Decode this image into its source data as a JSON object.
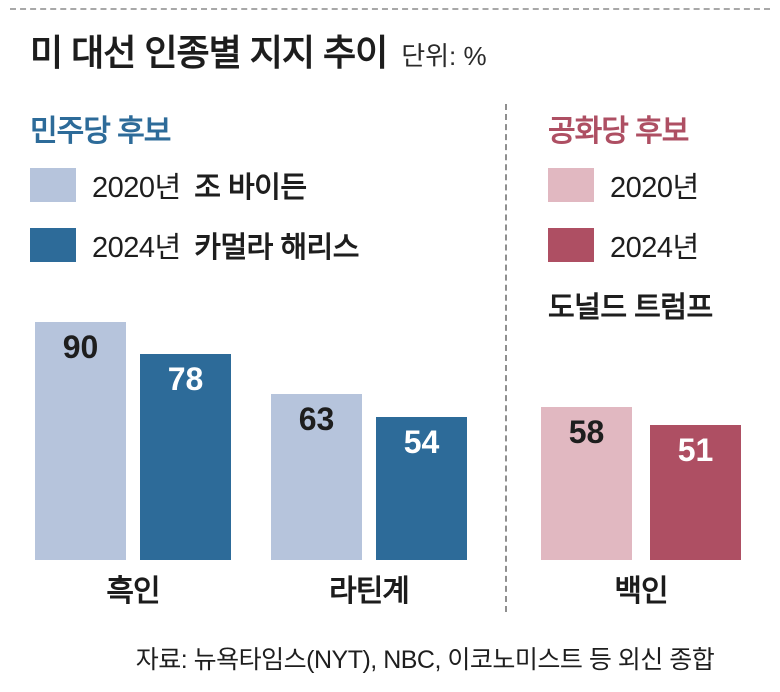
{
  "header": {
    "title": "미 대선 인종별 지지 추이",
    "unit_label": "단위: %"
  },
  "colors": {
    "dem_2020": "#b6c4dc",
    "dem_2024": "#2d6b99",
    "rep_2020": "#e1b8c1",
    "rep_2024": "#ae4f63",
    "dem_section_label": "#2d6b99",
    "rep_section_label": "#ae4f63",
    "label_on_light": "#1e1e1e",
    "label_on_dark": "#ffffff"
  },
  "democrat": {
    "section_label": "민주당 후보",
    "legend": [
      {
        "year": "2020년",
        "name": "조 바이든"
      },
      {
        "year": "2024년",
        "name": "카멀라 해리스"
      }
    ]
  },
  "republican": {
    "section_label": "공화당 후보",
    "legend": [
      {
        "year": "2020년"
      },
      {
        "year": "2024년"
      }
    ],
    "candidate_name": "도널드 트럼프"
  },
  "chart_data": {
    "type": "bar",
    "title": "미 대선 인종별 지지 추이",
    "unit": "%",
    "ylim": [
      0,
      100
    ],
    "legend_position": "top",
    "series_labels": [
      "2020년",
      "2024년"
    ],
    "groups": [
      {
        "category": "흑인",
        "party": "민주당",
        "bars": [
          {
            "year": "2020년",
            "candidate": "조 바이든",
            "value": 90
          },
          {
            "year": "2024년",
            "candidate": "카멀라 해리스",
            "value": 78
          }
        ]
      },
      {
        "category": "라틴계",
        "party": "민주당",
        "bars": [
          {
            "year": "2020년",
            "candidate": "조 바이든",
            "value": 63
          },
          {
            "year": "2024년",
            "candidate": "카멀라 해리스",
            "value": 54
          }
        ]
      },
      {
        "category": "백인",
        "party": "공화당",
        "bars": [
          {
            "year": "2020년",
            "candidate": "도널드 트럼프",
            "value": 58
          },
          {
            "year": "2024년",
            "candidate": "도널드 트럼프",
            "value": 51
          }
        ]
      }
    ]
  },
  "footer": {
    "source": "자료: 뉴욕타임스(NYT), NBC, 이코노미스트 등 외신 종합"
  }
}
